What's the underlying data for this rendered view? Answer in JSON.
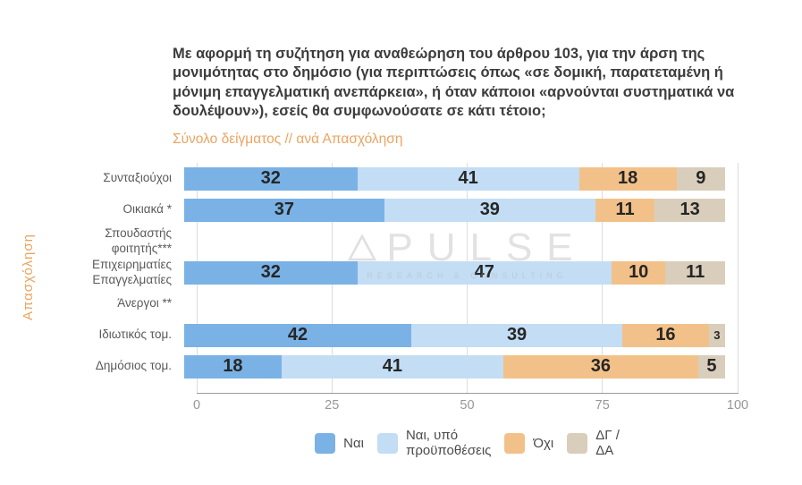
{
  "header": {
    "title": "Με αφορμή τη συζήτηση για αναθεώρηση του άρθρου 103, για την άρση της μονιμότητας στο δημόσιο (για περιπτώσεις όπως «σε δομική, παρατεταμένη ή μόνιμη επαγγελματική ανεπάρκεια», ή όταν κάποιοι «αρνούνται συστηματικά να δουλέψουν»), εσείς θα συμφωνούσατε σε κάτι τέτοιο;",
    "subtitle": "Σύνολο δείγματος // ανά Απασχόληση"
  },
  "watermark": {
    "brand": "PULSE",
    "tagline": "RESEARCH & CONSULTING"
  },
  "colors": {
    "accent_orange": "#eba45f",
    "title_text": "#3c3c3c",
    "bar_value_text": "#262626"
  },
  "chart_data": {
    "type": "bar",
    "orientation": "horizontal-stacked",
    "title": "Με αφορμή τη συζήτηση για αναθεώρηση του άρθρου 103, για την άρση της μονιμότητας στο δημόσιο (για περιπτώσεις όπως «σε δομική, παρατεταμένη ή μόνιμη επαγγελματική ανεπάρκεια», ή όταν κάποιοι «αρνούνται συστηματικά να δουλέψουν»), εσείς θα συμφωνούσατε σε κάτι τέτοιο;",
    "subtitle": "Σύνολο δείγματος // ανά Απασχόληση",
    "ylabel": "Απασχόληση",
    "xlim": [
      0,
      100
    ],
    "x_ticks": [
      0,
      25,
      50,
      75,
      100
    ],
    "grid": true,
    "legend_position": "bottom",
    "categories": [
      "Συνταξιούχοι",
      "Οικιακά *",
      "Σπουδαστής\nφοιτητής***",
      "Επιχειρηματίες\nΕπαγγελματίες",
      "Άνεργοι **",
      "Ιδιωτικός τομ.",
      "Δημόσιος τομ."
    ],
    "series": [
      {
        "name": "Ναι",
        "legend_label": "Ναι",
        "color": "#7ab2e6",
        "values": [
          32,
          37,
          null,
          32,
          null,
          42,
          18
        ]
      },
      {
        "name": "Ναι, υπό προϋποθέσεις",
        "legend_label": "Ναι, υπό\nπροϋποθέσεις",
        "color": "#c3ddf4",
        "values": [
          41,
          39,
          null,
          47,
          null,
          39,
          41
        ]
      },
      {
        "name": "Όχι",
        "legend_label": "Όχι",
        "color": "#f2c189",
        "values": [
          18,
          11,
          null,
          10,
          null,
          16,
          36
        ]
      },
      {
        "name": "ΔΓ / ΔΑ",
        "legend_label": "ΔΓ /\nΔΑ",
        "color": "#d9cebb",
        "values": [
          9,
          13,
          null,
          11,
          null,
          3,
          5
        ]
      }
    ]
  }
}
